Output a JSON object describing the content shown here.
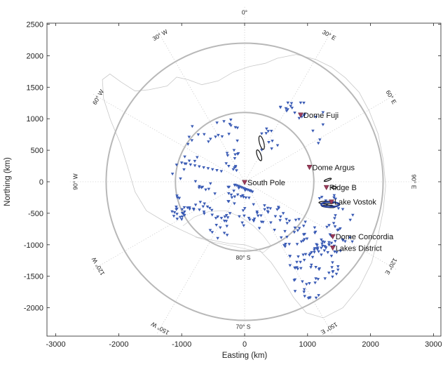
{
  "chart_data": {
    "type": "scatter",
    "projection": "polar stereographic",
    "title": "",
    "xlabel": "Easting (km)",
    "ylabel": "Northing (km)",
    "xlim": [
      -3100,
      3100
    ],
    "ylim": [
      -2450,
      2650
    ],
    "x_ticks": [
      -3000,
      -2000,
      -1000,
      0,
      1000,
      2000,
      3000
    ],
    "y_ticks": [
      -2000,
      -1500,
      -1000,
      -500,
      0,
      500,
      1000,
      1500,
      2000,
      2500
    ],
    "latitude_circles": [
      {
        "label": "80° S",
        "radius_km": 1100
      },
      {
        "label": "70° S",
        "radius_km": 2200
      }
    ],
    "longitude_labels": [
      "0°",
      "30° E",
      "60° E",
      "90° E",
      "120° E",
      "150° E",
      "30° W",
      "60° W",
      "90° W",
      "120° W",
      "150° W"
    ],
    "sites": [
      {
        "name": "Dome Fuji",
        "x": 890,
        "y": 1060
      },
      {
        "name": "Dome Argus",
        "x": 1030,
        "y": 230
      },
      {
        "name": "South Pole",
        "x": 0,
        "y": -10
      },
      {
        "name": "Ridge B",
        "x": 1300,
        "y": -90
      },
      {
        "name": "Lake Vostok",
        "x": 1380,
        "y": -320
      },
      {
        "name": "Dome Concordia",
        "x": 1400,
        "y": -870
      },
      {
        "name": "Lakes District",
        "x": 1400,
        "y": -1050
      }
    ],
    "colors": {
      "stations": "#3a5bb5",
      "sites": "#9b3a5a",
      "grid": "#b8b8b8",
      "coast": "#c8c8c8",
      "tracks": "#111111"
    }
  }
}
